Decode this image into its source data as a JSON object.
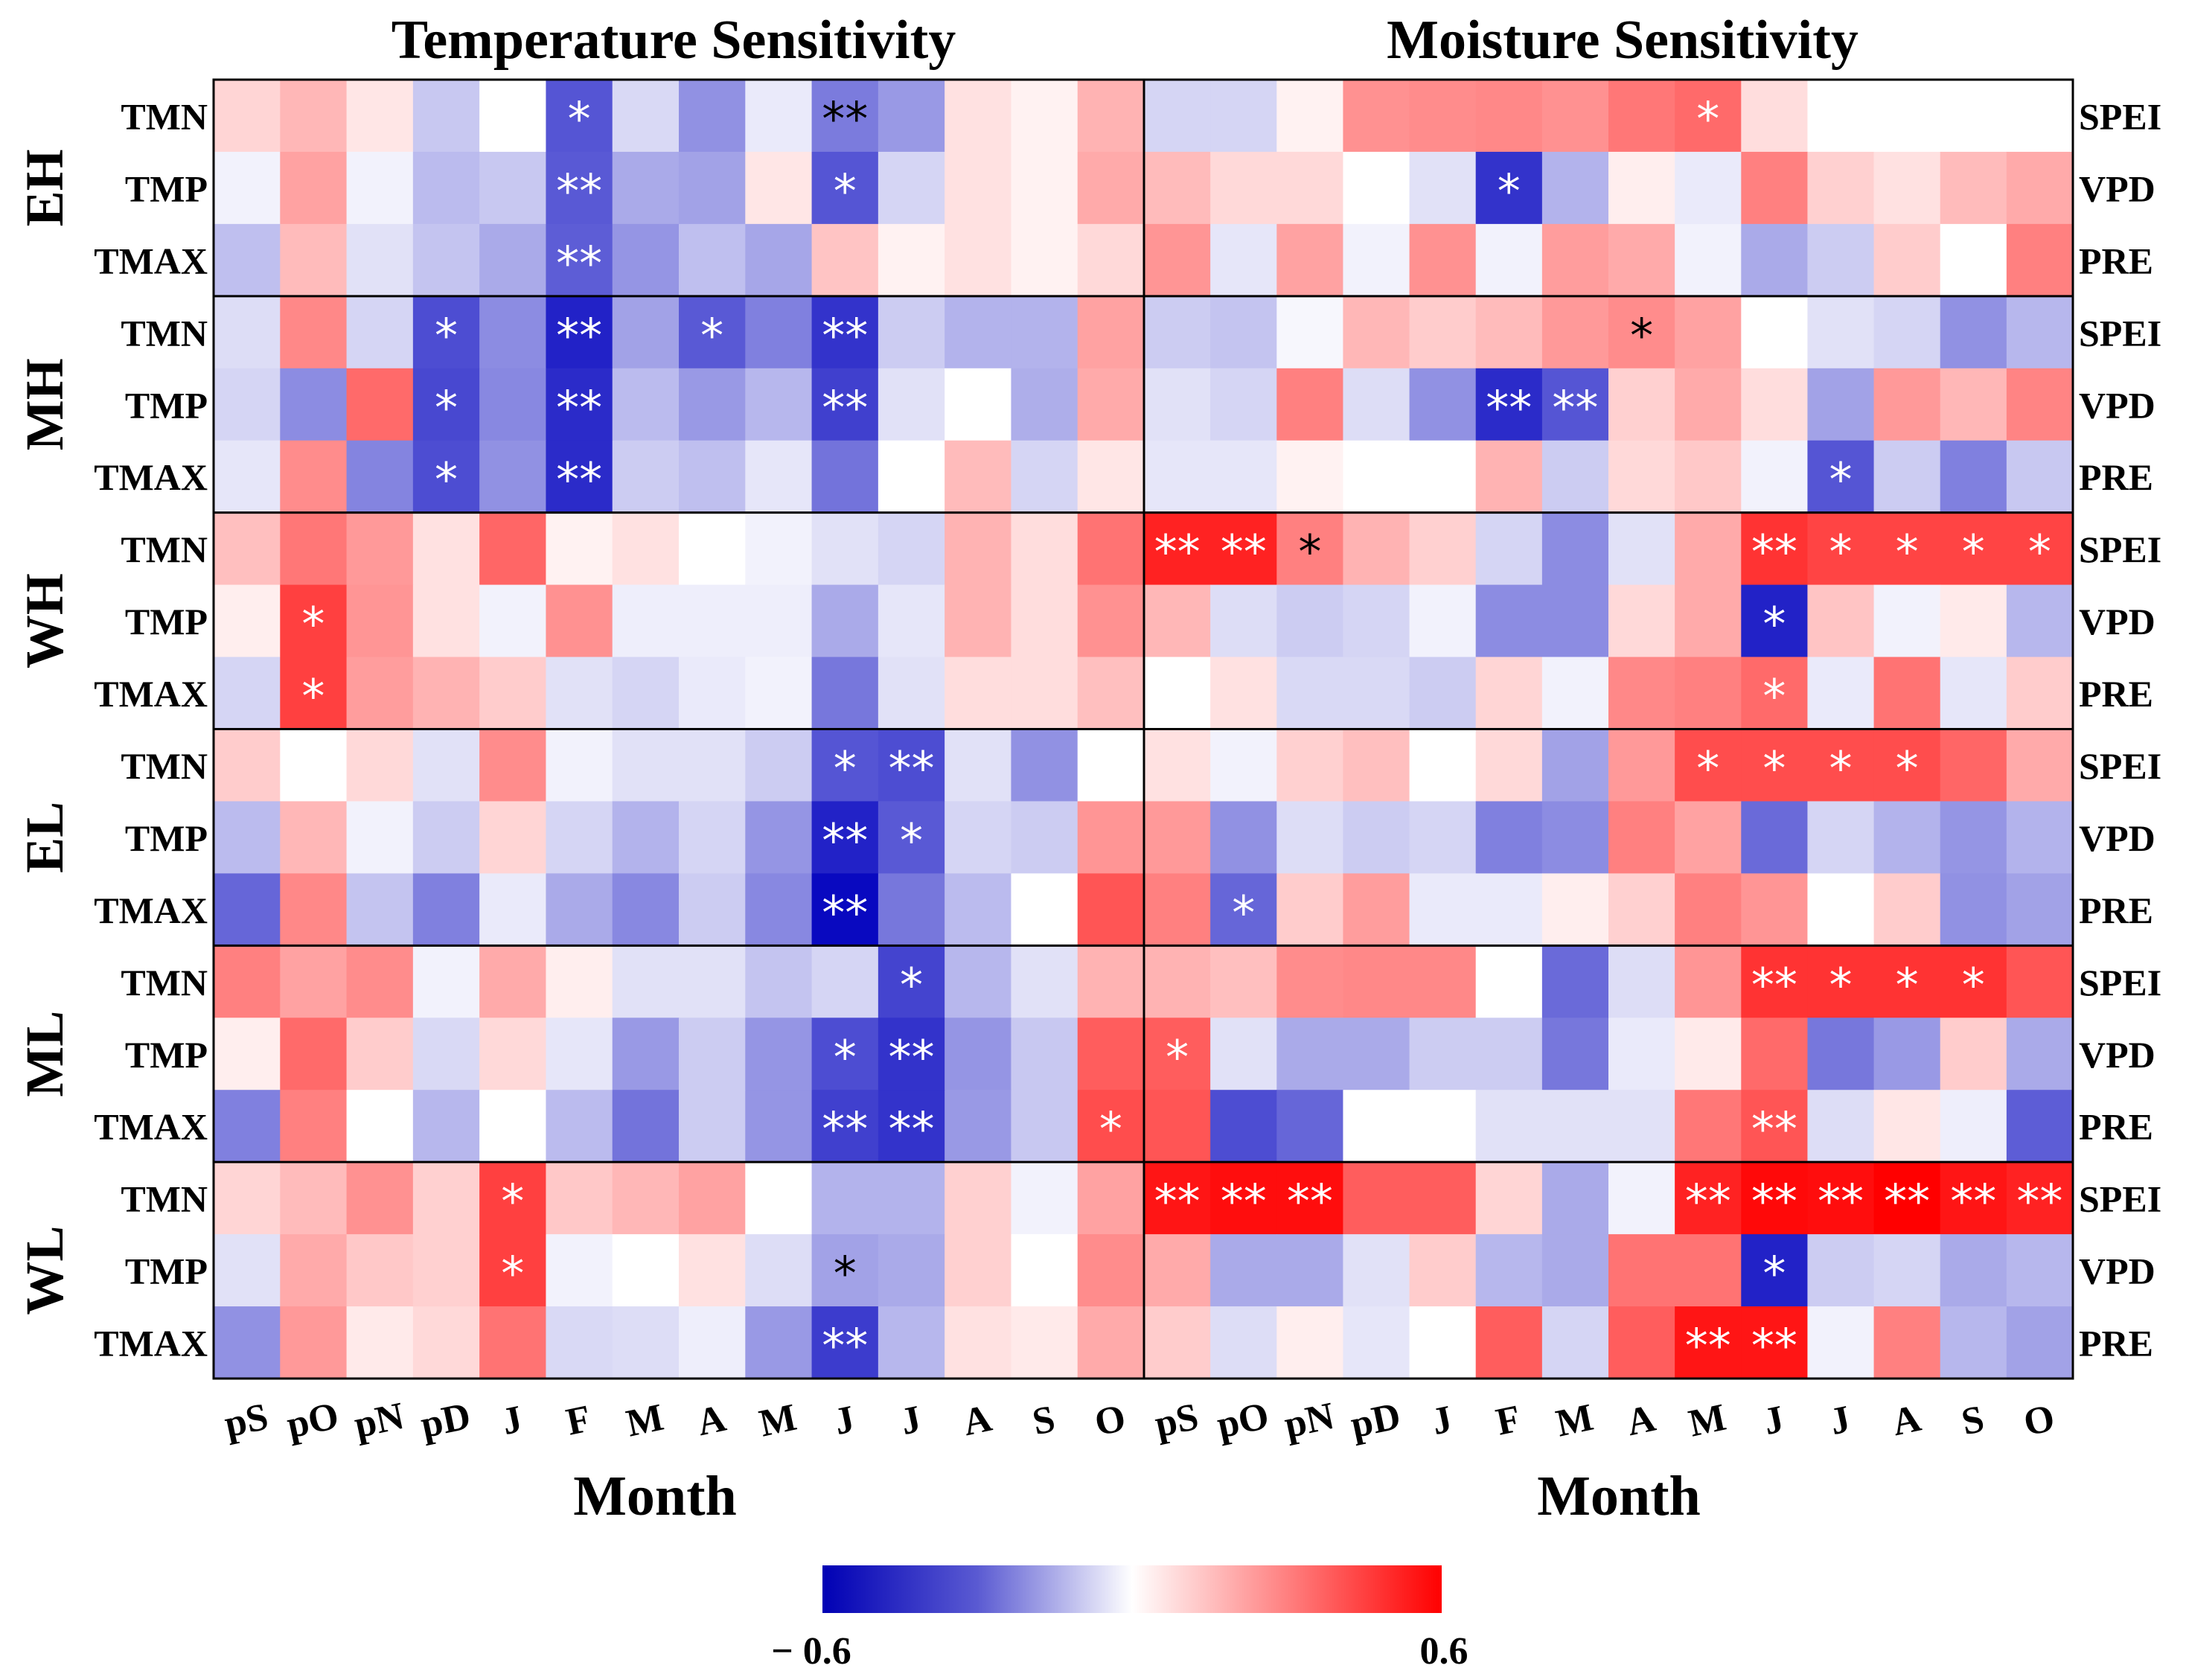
{
  "chart_data": {
    "type": "heatmap",
    "panels": [
      {
        "title": "Temperature Sensitivity",
        "xlabel": "Month",
        "row_labels": [
          "TMN",
          "TMP",
          "TMAX"
        ],
        "label_side": "left"
      },
      {
        "title": "Moisture Sensitivity",
        "xlabel": "Month",
        "row_labels": [
          "SPEI",
          "VPD",
          "PRE"
        ],
        "label_side": "right"
      }
    ],
    "months": [
      "pS",
      "pO",
      "pN",
      "pD",
      "J",
      "F",
      "M",
      "A",
      "M",
      "J",
      "J",
      "A",
      "S",
      "O"
    ],
    "groups": [
      "EH",
      "MH",
      "WH",
      "EL",
      "ML",
      "WL"
    ],
    "colorbar": {
      "min": -0.6,
      "max": 0.6,
      "min_label": "− 0.6",
      "max_label": "0.6",
      "low_color": "#0000ff",
      "mid_color": "#ffffff",
      "high_color": "#ff0000"
    },
    "temperature_values": [
      [
        [
          0.1,
          0.17,
          0.06,
          -0.13,
          0.0,
          -0.4,
          -0.09,
          -0.26,
          -0.05,
          -0.31,
          -0.24,
          0.07,
          0.03,
          0.18
        ],
        [
          -0.03,
          0.22,
          -0.03,
          -0.16,
          -0.13,
          -0.39,
          -0.2,
          -0.22,
          0.06,
          -0.4,
          -0.1,
          0.07,
          0.03,
          0.2
        ],
        [
          -0.15,
          0.16,
          -0.07,
          -0.14,
          -0.2,
          -0.38,
          -0.25,
          -0.15,
          -0.21,
          0.14,
          0.03,
          0.07,
          0.03,
          0.09
        ]
      ],
      [
        [
          -0.08,
          0.28,
          -0.1,
          -0.42,
          -0.27,
          -0.52,
          -0.22,
          -0.39,
          -0.3,
          -0.48,
          -0.12,
          -0.18,
          -0.18,
          0.22
        ],
        [
          -0.1,
          -0.27,
          0.35,
          -0.43,
          -0.28,
          -0.5,
          -0.16,
          -0.24,
          -0.17,
          -0.45,
          -0.07,
          0.0,
          -0.19,
          0.2
        ],
        [
          -0.06,
          0.27,
          -0.29,
          -0.42,
          -0.26,
          -0.5,
          -0.12,
          -0.15,
          -0.06,
          -0.33,
          0.0,
          0.16,
          -0.1,
          0.06
        ]
      ],
      [
        [
          0.15,
          0.32,
          0.24,
          0.07,
          0.36,
          0.03,
          0.07,
          0.0,
          -0.03,
          -0.07,
          -0.1,
          0.18,
          0.08,
          0.33
        ],
        [
          0.04,
          0.45,
          0.25,
          0.07,
          -0.03,
          0.26,
          -0.04,
          -0.04,
          -0.04,
          -0.2,
          -0.06,
          0.18,
          0.08,
          0.26
        ],
        [
          -0.1,
          0.45,
          0.23,
          0.18,
          0.12,
          -0.07,
          -0.1,
          -0.05,
          -0.03,
          -0.32,
          -0.07,
          0.08,
          0.08,
          0.15
        ]
      ],
      [
        [
          0.12,
          0.0,
          0.09,
          -0.07,
          0.27,
          -0.03,
          -0.07,
          -0.07,
          -0.12,
          -0.4,
          -0.42,
          -0.07,
          -0.26,
          0.0
        ],
        [
          -0.16,
          0.17,
          -0.03,
          -0.12,
          0.1,
          -0.1,
          -0.18,
          -0.1,
          -0.25,
          -0.52,
          -0.39,
          -0.1,
          -0.12,
          0.25
        ],
        [
          -0.36,
          0.28,
          -0.14,
          -0.3,
          -0.05,
          -0.2,
          -0.28,
          -0.12,
          -0.28,
          -0.58,
          -0.32,
          -0.16,
          0.0,
          0.4
        ]
      ],
      [
        [
          0.3,
          0.22,
          0.27,
          -0.03,
          0.2,
          0.04,
          -0.07,
          -0.07,
          -0.14,
          -0.1,
          -0.44,
          -0.17,
          -0.07,
          0.18
        ],
        [
          0.04,
          0.35,
          0.12,
          -0.09,
          0.09,
          -0.06,
          -0.24,
          -0.12,
          -0.25,
          -0.42,
          -0.48,
          -0.25,
          -0.13,
          0.38
        ],
        [
          -0.3,
          0.3,
          0.0,
          -0.17,
          0.0,
          -0.16,
          -0.33,
          -0.12,
          -0.25,
          -0.45,
          -0.48,
          -0.24,
          -0.13,
          0.42
        ]
      ],
      [
        [
          0.1,
          0.16,
          0.26,
          0.11,
          0.45,
          0.13,
          0.17,
          0.22,
          0.0,
          -0.18,
          -0.18,
          0.11,
          -0.03,
          0.22
        ],
        [
          -0.07,
          0.2,
          0.13,
          0.11,
          0.45,
          -0.03,
          0.0,
          0.07,
          -0.08,
          -0.22,
          -0.2,
          0.11,
          0.0,
          0.27
        ],
        [
          -0.26,
          0.24,
          0.05,
          0.09,
          0.33,
          -0.09,
          -0.08,
          -0.04,
          -0.24,
          -0.46,
          -0.17,
          0.07,
          0.05,
          0.2
        ]
      ]
    ],
    "temperature_significance": [
      [
        [
          "",
          "",
          "",
          "",
          "",
          "*",
          "",
          "",
          "",
          "**",
          "",
          "",
          "",
          ""
        ],
        [
          "",
          "",
          "",
          "",
          "",
          "**",
          "",
          "",
          "",
          "*",
          "",
          "",
          "",
          ""
        ],
        [
          "",
          "",
          "",
          "",
          "",
          "**",
          "",
          "",
          "",
          "",
          "",
          "",
          "",
          ""
        ]
      ],
      [
        [
          "",
          "",
          "",
          "*",
          "",
          "**",
          "",
          "*",
          "",
          "**",
          "",
          "",
          "",
          ""
        ],
        [
          "",
          "",
          "",
          "*",
          "",
          "**",
          "",
          "",
          "",
          "**",
          "",
          "",
          "",
          ""
        ],
        [
          "",
          "",
          "",
          "*",
          "",
          "**",
          "",
          "",
          "",
          "",
          "",
          "",
          "",
          ""
        ]
      ],
      [
        [
          "",
          "",
          "",
          "",
          "",
          "",
          "",
          "",
          "",
          "",
          "",
          "",
          "",
          ""
        ],
        [
          "",
          "*",
          "",
          "",
          "",
          "",
          "",
          "",
          "",
          "",
          "",
          "",
          "",
          ""
        ],
        [
          "",
          "*",
          "",
          "",
          "",
          "",
          "",
          "",
          "",
          "",
          "",
          "",
          "",
          ""
        ]
      ],
      [
        [
          "",
          "",
          "",
          "",
          "",
          "",
          "",
          "",
          "",
          "*",
          "**",
          "",
          "",
          ""
        ],
        [
          "",
          "",
          "",
          "",
          "",
          "",
          "",
          "",
          "",
          "**",
          "*",
          "",
          "",
          ""
        ],
        [
          "",
          "",
          "",
          "",
          "",
          "",
          "",
          "",
          "",
          "**",
          "",
          "",
          "",
          ""
        ]
      ],
      [
        [
          "",
          "",
          "",
          "",
          "",
          "",
          "",
          "",
          "",
          "",
          "*",
          "",
          "",
          ""
        ],
        [
          "",
          "",
          "",
          "",
          "",
          "",
          "",
          "",
          "",
          "*",
          "**",
          "",
          "",
          ""
        ],
        [
          "",
          "",
          "",
          "",
          "",
          "",
          "",
          "",
          "",
          "**",
          "**",
          "",
          "",
          "*"
        ]
      ],
      [
        [
          "",
          "",
          "",
          "",
          "*",
          "",
          "",
          "",
          "",
          "",
          "",
          "",
          "",
          ""
        ],
        [
          "",
          "",
          "",
          "",
          "*",
          "",
          "",
          "",
          "",
          "*",
          "",
          "",
          "",
          ""
        ],
        [
          "",
          "",
          "",
          "",
          "",
          "",
          "",
          "",
          "",
          "**",
          "",
          "",
          "",
          ""
        ]
      ]
    ],
    "moisture_values": [
      [
        [
          -0.1,
          -0.1,
          0.03,
          0.26,
          0.27,
          0.28,
          0.26,
          0.32,
          0.35,
          0.08,
          0.0,
          0.0,
          0.0,
          0.0
        ],
        [
          0.16,
          0.09,
          0.09,
          0.0,
          -0.07,
          -0.48,
          -0.18,
          0.04,
          -0.05,
          0.3,
          0.11,
          0.07,
          0.16,
          0.2
        ],
        [
          0.25,
          -0.06,
          0.22,
          -0.03,
          0.26,
          -0.03,
          0.23,
          0.2,
          -0.03,
          -0.2,
          -0.12,
          0.12,
          0.0,
          0.3
        ]
      ],
      [
        [
          -0.12,
          -0.14,
          -0.02,
          0.17,
          0.12,
          0.16,
          0.24,
          0.27,
          0.22,
          0.0,
          -0.07,
          -0.1,
          -0.26,
          -0.17
        ],
        [
          -0.07,
          -0.1,
          0.3,
          -0.08,
          -0.26,
          -0.5,
          -0.4,
          0.11,
          0.2,
          0.08,
          -0.22,
          0.24,
          0.17,
          0.29
        ],
        [
          -0.06,
          -0.06,
          0.03,
          0.0,
          0.0,
          0.18,
          -0.12,
          0.09,
          0.13,
          -0.03,
          -0.4,
          -0.12,
          -0.3,
          -0.13
        ]
      ],
      [
        [
          0.52,
          0.52,
          0.3,
          0.18,
          0.11,
          -0.1,
          -0.27,
          -0.07,
          0.2,
          0.48,
          0.44,
          0.44,
          0.44,
          0.44
        ],
        [
          0.17,
          -0.08,
          -0.12,
          -0.1,
          -0.03,
          -0.27,
          -0.27,
          0.09,
          0.2,
          -0.52,
          0.14,
          -0.03,
          0.05,
          -0.17
        ],
        [
          0.0,
          0.07,
          -0.09,
          -0.09,
          -0.12,
          0.1,
          -0.03,
          0.28,
          0.3,
          0.35,
          -0.05,
          0.33,
          -0.06,
          0.12
        ]
      ],
      [
        [
          0.07,
          -0.03,
          0.11,
          0.15,
          0.0,
          0.09,
          -0.22,
          0.24,
          0.42,
          0.42,
          0.42,
          0.42,
          0.36,
          0.2
        ],
        [
          0.24,
          -0.26,
          -0.08,
          -0.12,
          -0.1,
          -0.3,
          -0.27,
          0.3,
          0.22,
          -0.35,
          -0.1,
          -0.18,
          -0.25,
          -0.18
        ],
        [
          0.3,
          -0.36,
          0.12,
          0.23,
          -0.05,
          -0.05,
          0.04,
          0.11,
          0.3,
          0.25,
          0.0,
          0.12,
          -0.26,
          -0.22
        ]
      ],
      [
        [
          0.18,
          0.15,
          0.27,
          0.28,
          0.28,
          0.0,
          -0.35,
          -0.08,
          0.25,
          0.48,
          0.48,
          0.48,
          0.48,
          0.4
        ],
        [
          0.38,
          -0.07,
          -0.2,
          -0.2,
          -0.12,
          -0.12,
          -0.32,
          -0.05,
          0.05,
          0.35,
          -0.32,
          -0.24,
          0.12,
          -0.2
        ],
        [
          0.4,
          -0.42,
          -0.36,
          0.0,
          0.0,
          -0.07,
          -0.07,
          -0.07,
          0.32,
          0.4,
          -0.08,
          0.06,
          -0.04,
          -0.38
        ]
      ],
      [
        [
          0.55,
          0.57,
          0.57,
          0.38,
          0.38,
          0.1,
          -0.2,
          -0.03,
          0.52,
          0.58,
          0.57,
          0.6,
          0.55,
          0.52
        ],
        [
          0.2,
          -0.2,
          -0.2,
          -0.07,
          0.12,
          -0.17,
          -0.2,
          0.33,
          0.33,
          -0.52,
          -0.12,
          -0.1,
          -0.2,
          -0.17
        ],
        [
          0.12,
          -0.08,
          0.04,
          -0.06,
          0.0,
          0.38,
          -0.1,
          0.38,
          0.55,
          0.55,
          -0.03,
          0.3,
          -0.17,
          -0.22
        ]
      ]
    ],
    "moisture_significance": [
      [
        [
          "",
          "",
          "",
          "",
          "",
          "",
          "",
          "",
          "*",
          "",
          "",
          "",
          "",
          ""
        ],
        [
          "",
          "",
          "",
          "",
          "",
          "*",
          "",
          "",
          "",
          "",
          "",
          "",
          "",
          ""
        ],
        [
          "",
          "",
          "",
          "",
          "",
          "",
          "",
          "",
          "",
          "",
          "",
          "",
          "",
          ""
        ]
      ],
      [
        [
          "",
          "",
          "",
          "",
          "",
          "",
          "",
          "*",
          "",
          "",
          "",
          "",
          "",
          ""
        ],
        [
          "",
          "",
          "",
          "",
          "",
          "**",
          "**",
          "",
          "",
          "",
          "",
          "",
          "",
          ""
        ],
        [
          "",
          "",
          "",
          "",
          "",
          "",
          "",
          "",
          "",
          "",
          "*",
          "",
          "",
          ""
        ]
      ],
      [
        [
          "**",
          "**",
          "*",
          "",
          "",
          "",
          "",
          "",
          "",
          "**",
          "*",
          "*",
          "*",
          "*"
        ],
        [
          "",
          "",
          "",
          "",
          "",
          "",
          "",
          "",
          "",
          "*",
          "",
          "",
          "",
          ""
        ],
        [
          "",
          "",
          "",
          "",
          "",
          "",
          "",
          "",
          "",
          "*",
          "",
          "",
          "",
          ""
        ]
      ],
      [
        [
          "",
          "",
          "",
          "",
          "",
          "",
          "",
          "",
          "*",
          "*",
          "*",
          "*",
          "",
          ""
        ],
        [
          "",
          "",
          "",
          "",
          "",
          "",
          "",
          "",
          "",
          "",
          "",
          "",
          "",
          ""
        ],
        [
          "",
          "*",
          "",
          "",
          "",
          "",
          "",
          "",
          "",
          "",
          "",
          "",
          "",
          ""
        ]
      ],
      [
        [
          "",
          "",
          "",
          "",
          "",
          "",
          "",
          "",
          "",
          "**",
          "*",
          "*",
          "*",
          ""
        ],
        [
          "*",
          "",
          "",
          "",
          "",
          "",
          "",
          "",
          "",
          "",
          "",
          "",
          "",
          ""
        ],
        [
          "",
          "",
          "",
          "",
          "",
          "",
          "",
          "",
          "",
          "**",
          "",
          "",
          "",
          ""
        ]
      ],
      [
        [
          "**",
          "**",
          "**",
          "",
          "",
          "",
          "",
          "",
          "**",
          "**",
          "**",
          "**",
          "**",
          "**"
        ],
        [
          "",
          "",
          "",
          "",
          "",
          "",
          "",
          "",
          "",
          "*",
          "",
          "",
          "",
          ""
        ],
        [
          "",
          "",
          "",
          "",
          "",
          "",
          "",
          "",
          "**",
          "**",
          "",
          "",
          "",
          ""
        ]
      ]
    ]
  }
}
